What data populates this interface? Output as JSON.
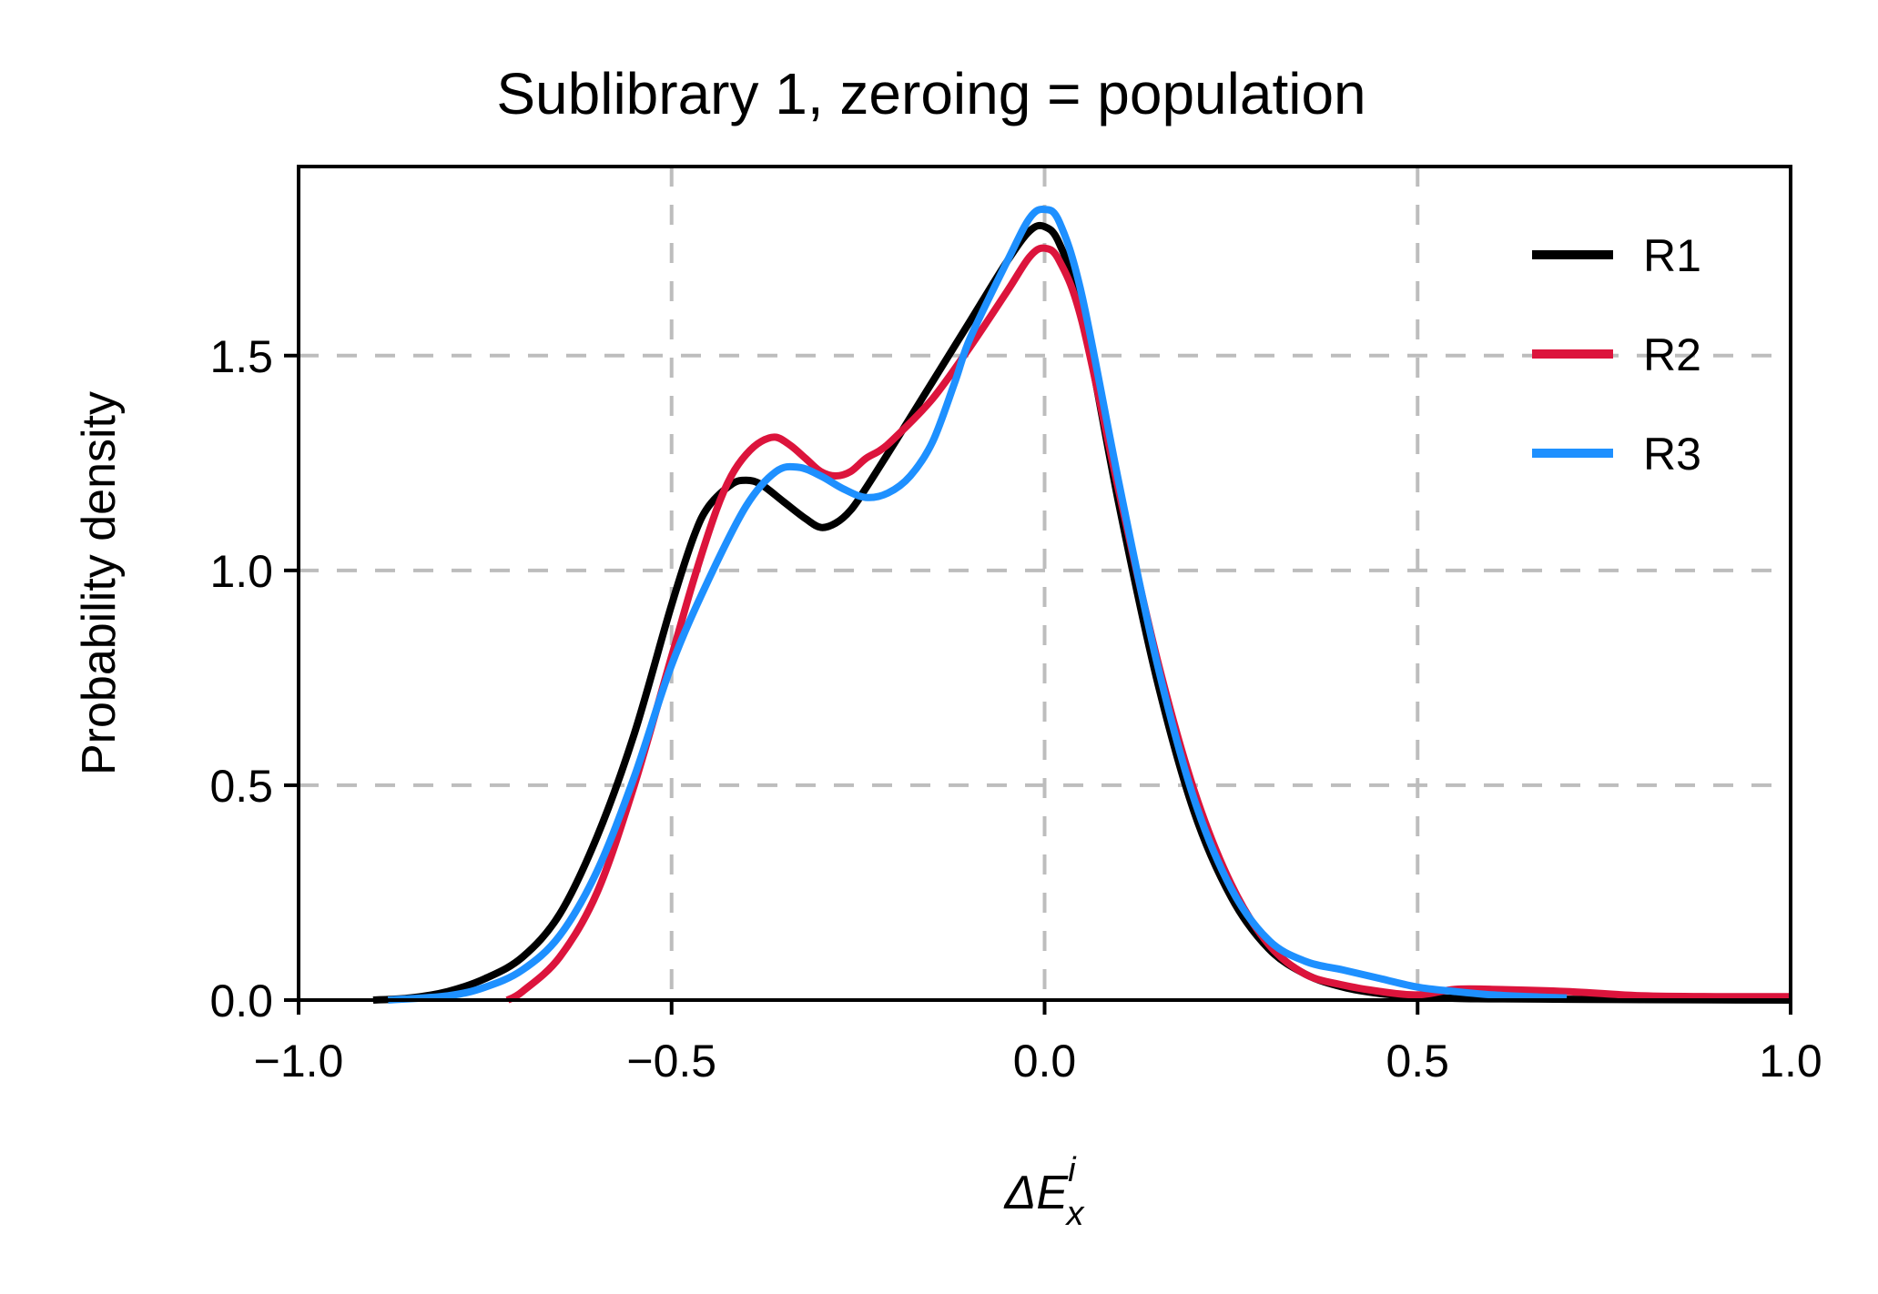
{
  "chart_data": {
    "type": "line",
    "title": "Sublibrary 1, zeroing = population",
    "xlabel": {
      "base": "ΔE",
      "superscript": "i",
      "subscript": "x"
    },
    "ylabel": "Probability density",
    "xlim": [
      -1.0,
      1.0
    ],
    "ylim": [
      0.0,
      1.94
    ],
    "xticks": [
      -1.0,
      -0.5,
      0.0,
      0.5,
      1.0
    ],
    "xtick_labels": [
      "−1.0",
      "−0.5",
      "0.0",
      "0.5",
      "1.0"
    ],
    "yticks": [
      0.0,
      0.5,
      1.0,
      1.5
    ],
    "ytick_labels": [
      "0.0",
      "0.5",
      "1.0",
      "1.5"
    ],
    "grid": true,
    "legend_position": "top-right",
    "series": [
      {
        "name": "R1",
        "color": "#000000",
        "x": [
          -0.9,
          -0.85,
          -0.8,
          -0.75,
          -0.7,
          -0.65,
          -0.6,
          -0.55,
          -0.5,
          -0.47,
          -0.45,
          -0.42,
          -0.4,
          -0.38,
          -0.35,
          -0.32,
          -0.3,
          -0.28,
          -0.26,
          -0.24,
          -0.2,
          -0.15,
          -0.1,
          -0.05,
          -0.02,
          0.0,
          0.02,
          0.05,
          0.1,
          0.15,
          0.2,
          0.25,
          0.3,
          0.35,
          0.4,
          0.45,
          0.5,
          0.55,
          0.6,
          0.7,
          0.8,
          1.0
        ],
        "y": [
          0.0,
          0.005,
          0.02,
          0.05,
          0.1,
          0.2,
          0.38,
          0.62,
          0.92,
          1.08,
          1.15,
          1.2,
          1.21,
          1.2,
          1.16,
          1.12,
          1.1,
          1.11,
          1.14,
          1.19,
          1.3,
          1.44,
          1.58,
          1.72,
          1.79,
          1.8,
          1.76,
          1.6,
          1.15,
          0.75,
          0.44,
          0.24,
          0.12,
          0.06,
          0.03,
          0.015,
          0.008,
          0.004,
          0.003,
          0.002,
          0.001,
          0.0
        ]
      },
      {
        "name": "R2",
        "color": "#dc143c",
        "x": [
          -0.72,
          -0.7,
          -0.65,
          -0.6,
          -0.55,
          -0.5,
          -0.47,
          -0.44,
          -0.42,
          -0.4,
          -0.38,
          -0.36,
          -0.34,
          -0.32,
          -0.3,
          -0.28,
          -0.26,
          -0.24,
          -0.22,
          -0.2,
          -0.15,
          -0.1,
          -0.05,
          -0.02,
          0.0,
          0.02,
          0.05,
          0.1,
          0.15,
          0.2,
          0.25,
          0.3,
          0.35,
          0.4,
          0.45,
          0.5,
          0.55,
          0.6,
          0.7,
          0.8,
          0.9,
          1.0
        ],
        "y": [
          0.0,
          0.02,
          0.1,
          0.25,
          0.5,
          0.8,
          0.98,
          1.14,
          1.22,
          1.27,
          1.3,
          1.31,
          1.29,
          1.26,
          1.23,
          1.22,
          1.23,
          1.26,
          1.28,
          1.31,
          1.4,
          1.52,
          1.65,
          1.73,
          1.75,
          1.72,
          1.58,
          1.18,
          0.8,
          0.49,
          0.27,
          0.13,
          0.06,
          0.035,
          0.02,
          0.012,
          0.025,
          0.025,
          0.02,
          0.01,
          0.008,
          0.008
        ]
      },
      {
        "name": "R3",
        "color": "#1e90ff",
        "x": [
          -0.88,
          -0.8,
          -0.75,
          -0.7,
          -0.65,
          -0.6,
          -0.55,
          -0.5,
          -0.45,
          -0.4,
          -0.36,
          -0.33,
          -0.3,
          -0.27,
          -0.24,
          -0.21,
          -0.18,
          -0.15,
          -0.12,
          -0.1,
          -0.05,
          -0.02,
          0.0,
          0.02,
          0.05,
          0.1,
          0.15,
          0.2,
          0.25,
          0.3,
          0.35,
          0.4,
          0.45,
          0.5,
          0.55,
          0.6,
          0.65,
          0.7
        ],
        "y": [
          0.0,
          0.01,
          0.03,
          0.07,
          0.15,
          0.3,
          0.52,
          0.78,
          0.98,
          1.15,
          1.23,
          1.24,
          1.22,
          1.19,
          1.17,
          1.18,
          1.22,
          1.3,
          1.44,
          1.54,
          1.72,
          1.82,
          1.84,
          1.81,
          1.64,
          1.2,
          0.79,
          0.47,
          0.26,
          0.14,
          0.09,
          0.07,
          0.05,
          0.03,
          0.02,
          0.012,
          0.008,
          0.005
        ]
      }
    ]
  }
}
